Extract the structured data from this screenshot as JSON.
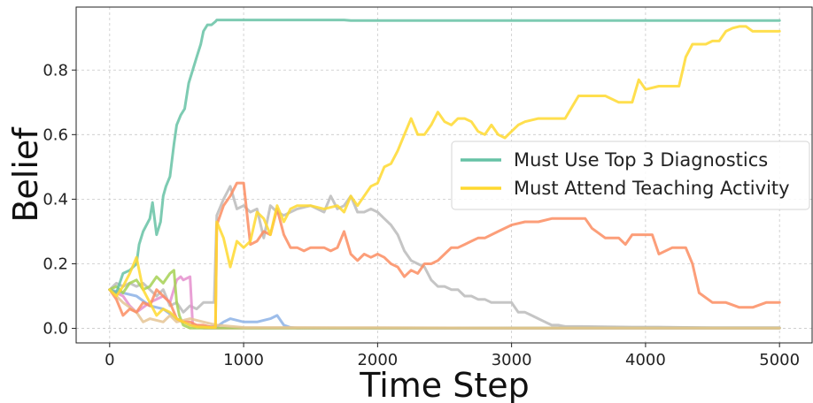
{
  "chart_data": {
    "type": "line",
    "title": "",
    "xlabel": "Time Step",
    "ylabel": "Belief",
    "xlim": [
      -250,
      5250
    ],
    "ylim": [
      -0.045,
      0.995
    ],
    "xticks": [
      0,
      1000,
      2000,
      3000,
      4000,
      5000
    ],
    "xtick_labels": [
      "0",
      "1000",
      "2000",
      "3000",
      "4000",
      "5000"
    ],
    "yticks": [
      0.0,
      0.2,
      0.4,
      0.6,
      0.8
    ],
    "ytick_labels": [
      "0.0",
      "0.2",
      "0.4",
      "0.6",
      "0.8"
    ],
    "grid": true,
    "legend_position": "center-right",
    "series": [
      {
        "color": "#bbbbbb",
        "x": [
          0,
          50,
          100,
          150,
          200,
          250,
          300,
          350,
          400,
          450,
          500,
          550,
          600,
          650,
          700,
          780,
          800,
          850,
          900,
          950,
          1000,
          1050,
          1100,
          1150,
          1200,
          1250,
          1300,
          1400,
          1500,
          1600,
          1650,
          1700,
          1750,
          1800,
          1850,
          1900,
          1950,
          2000,
          2050,
          2100,
          2150,
          2200,
          2250,
          2300,
          2350,
          2400,
          2450,
          2500,
          2550,
          2600,
          2650,
          2700,
          2750,
          2800,
          2850,
          2900,
          2950,
          3000,
          3050,
          3100,
          3150,
          3200,
          3250,
          3300,
          3350,
          3400,
          3500,
          3700,
          3900,
          4100,
          4300,
          4500,
          4700,
          5000
        ],
        "y": [
          0.12,
          0.14,
          0.13,
          0.14,
          0.13,
          0.14,
          0.12,
          0.1,
          0.12,
          0.07,
          0.08,
          0.05,
          0.07,
          0.06,
          0.08,
          0.08,
          0.35,
          0.4,
          0.44,
          0.37,
          0.38,
          0.36,
          0.37,
          0.28,
          0.38,
          0.36,
          0.35,
          0.37,
          0.38,
          0.36,
          0.41,
          0.37,
          0.38,
          0.41,
          0.36,
          0.36,
          0.37,
          0.36,
          0.34,
          0.32,
          0.29,
          0.24,
          0.21,
          0.2,
          0.19,
          0.15,
          0.13,
          0.13,
          0.12,
          0.12,
          0.1,
          0.1,
          0.09,
          0.09,
          0.08,
          0.08,
          0.08,
          0.08,
          0.05,
          0.05,
          0.04,
          0.03,
          0.02,
          0.01,
          0.01,
          0.006,
          0.006,
          0.005,
          0.004,
          0.004,
          0.003,
          0.002,
          0.002,
          0.002
        ]
      },
      {
        "color": "#8cb2e6",
        "x": [
          0,
          100,
          200,
          300,
          400,
          500,
          600,
          700,
          800,
          850,
          900,
          1000,
          1100,
          1200,
          1250,
          1300,
          1350,
          1400,
          2000,
          3000,
          4000,
          5000
        ],
        "y": [
          0.12,
          0.11,
          0.1,
          0.07,
          0.06,
          0.03,
          0.01,
          0.005,
          0.005,
          0.02,
          0.03,
          0.02,
          0.02,
          0.03,
          0.04,
          0.01,
          0.003,
          0.001,
          0.001,
          0.001,
          0.001,
          0.001
        ]
      },
      {
        "color": "#e58fce",
        "x": [
          0,
          100,
          150,
          200,
          300,
          400,
          450,
          500,
          530,
          550,
          600,
          620,
          650,
          700,
          3000,
          5000
        ],
        "y": [
          0.12,
          0.1,
          0.07,
          0.05,
          0.08,
          0.1,
          0.08,
          0.15,
          0.16,
          0.15,
          0.16,
          0.01,
          0.005,
          0.001,
          0.001,
          0.001
        ]
      },
      {
        "color": "#a6d154",
        "x": [
          0,
          50,
          100,
          150,
          200,
          250,
          300,
          350,
          400,
          450,
          480,
          500,
          520,
          550,
          600,
          3000,
          5000
        ],
        "y": [
          0.12,
          0.13,
          0.11,
          0.14,
          0.15,
          0.12,
          0.13,
          0.16,
          0.14,
          0.17,
          0.18,
          0.08,
          0.04,
          0.01,
          0.001,
          0.001,
          0.001
        ]
      },
      {
        "color": "#e5c494",
        "x": [
          0,
          100,
          200,
          250,
          300,
          400,
          450,
          500,
          600,
          700,
          800,
          1000,
          2000,
          3000,
          4000,
          5000
        ],
        "y": [
          0.12,
          0.08,
          0.05,
          0.02,
          0.03,
          0.02,
          0.04,
          0.02,
          0.03,
          0.02,
          0.01,
          0.003,
          0.002,
          0.001,
          0.001,
          0.001
        ]
      },
      {
        "color": "#fc8d62",
        "x": [
          0,
          50,
          100,
          150,
          200,
          250,
          300,
          350,
          400,
          450,
          500,
          550,
          600,
          650,
          700,
          750,
          790,
          800,
          850,
          900,
          950,
          1000,
          1050,
          1100,
          1150,
          1200,
          1250,
          1300,
          1350,
          1400,
          1450,
          1500,
          1550,
          1600,
          1650,
          1700,
          1750,
          1800,
          1850,
          1900,
          1950,
          2000,
          2050,
          2100,
          2150,
          2200,
          2250,
          2300,
          2350,
          2400,
          2450,
          2500,
          2550,
          2600,
          2650,
          2700,
          2750,
          2800,
          2850,
          2900,
          3000,
          3100,
          3200,
          3300,
          3400,
          3500,
          3550,
          3600,
          3700,
          3800,
          3850,
          3900,
          4000,
          4050,
          4100,
          4200,
          4250,
          4300,
          4350,
          4400,
          4500,
          4600,
          4700,
          4800,
          4900,
          5000
        ],
        "y": [
          0.12,
          0.09,
          0.04,
          0.06,
          0.05,
          0.08,
          0.07,
          0.12,
          0.1,
          0.08,
          0.03,
          0.02,
          0.02,
          0.01,
          0.01,
          0.005,
          0.004,
          0.32,
          0.38,
          0.41,
          0.45,
          0.45,
          0.26,
          0.27,
          0.3,
          0.29,
          0.37,
          0.29,
          0.25,
          0.25,
          0.24,
          0.25,
          0.25,
          0.25,
          0.24,
          0.25,
          0.3,
          0.23,
          0.21,
          0.23,
          0.22,
          0.23,
          0.22,
          0.2,
          0.19,
          0.16,
          0.18,
          0.17,
          0.2,
          0.2,
          0.21,
          0.23,
          0.25,
          0.25,
          0.26,
          0.27,
          0.28,
          0.28,
          0.29,
          0.3,
          0.32,
          0.33,
          0.33,
          0.34,
          0.34,
          0.34,
          0.34,
          0.31,
          0.28,
          0.28,
          0.26,
          0.29,
          0.29,
          0.29,
          0.23,
          0.25,
          0.25,
          0.25,
          0.2,
          0.11,
          0.08,
          0.08,
          0.065,
          0.065,
          0.08,
          0.08
        ]
      },
      {
        "color": "#66c2a5",
        "name": "Must Use Top 3 Diagnostics",
        "x": [
          0,
          50,
          100,
          150,
          200,
          220,
          250,
          300,
          320,
          350,
          380,
          400,
          420,
          450,
          480,
          500,
          530,
          560,
          590,
          620,
          650,
          680,
          700,
          730,
          760,
          790,
          800,
          850,
          1000,
          1500,
          1750,
          1800,
          2000,
          3000,
          4000,
          5000
        ],
        "y": [
          0.12,
          0.11,
          0.17,
          0.18,
          0.2,
          0.26,
          0.3,
          0.34,
          0.39,
          0.29,
          0.33,
          0.41,
          0.44,
          0.47,
          0.57,
          0.63,
          0.66,
          0.68,
          0.76,
          0.8,
          0.84,
          0.88,
          0.92,
          0.94,
          0.94,
          0.95,
          0.955,
          0.955,
          0.955,
          0.955,
          0.955,
          0.953,
          0.953,
          0.953,
          0.953,
          0.953
        ]
      },
      {
        "color": "#ffd92f",
        "name": "Must Attend Teaching Activity",
        "x": [
          0,
          50,
          100,
          150,
          200,
          250,
          300,
          350,
          400,
          450,
          500,
          550,
          600,
          650,
          700,
          750,
          790,
          800,
          850,
          900,
          950,
          1000,
          1050,
          1100,
          1150,
          1200,
          1250,
          1300,
          1350,
          1400,
          1500,
          1600,
          1700,
          1750,
          1800,
          1850,
          1900,
          1950,
          2000,
          2050,
          2100,
          2150,
          2200,
          2250,
          2300,
          2350,
          2400,
          2450,
          2500,
          2550,
          2600,
          2650,
          2700,
          2750,
          2800,
          2850,
          2900,
          2950,
          3000,
          3050,
          3100,
          3200,
          3300,
          3400,
          3500,
          3550,
          3600,
          3700,
          3800,
          3850,
          3900,
          3950,
          4000,
          4100,
          4200,
          4250,
          4300,
          4350,
          4400,
          4450,
          4500,
          4550,
          4600,
          4650,
          4700,
          4750,
          4800,
          4900,
          5000
        ],
        "y": [
          0.12,
          0.1,
          0.13,
          0.17,
          0.22,
          0.12,
          0.08,
          0.04,
          0.06,
          0.05,
          0.03,
          0.02,
          0.01,
          0.005,
          0.004,
          0.003,
          0.003,
          0.33,
          0.28,
          0.19,
          0.27,
          0.25,
          0.27,
          0.36,
          0.34,
          0.29,
          0.38,
          0.33,
          0.37,
          0.38,
          0.38,
          0.37,
          0.38,
          0.36,
          0.41,
          0.38,
          0.41,
          0.44,
          0.45,
          0.5,
          0.51,
          0.55,
          0.6,
          0.65,
          0.6,
          0.6,
          0.63,
          0.67,
          0.64,
          0.63,
          0.65,
          0.65,
          0.64,
          0.61,
          0.6,
          0.63,
          0.6,
          0.59,
          0.61,
          0.63,
          0.64,
          0.65,
          0.65,
          0.65,
          0.72,
          0.72,
          0.72,
          0.72,
          0.7,
          0.7,
          0.7,
          0.77,
          0.74,
          0.75,
          0.75,
          0.75,
          0.84,
          0.88,
          0.88,
          0.88,
          0.89,
          0.89,
          0.92,
          0.93,
          0.935,
          0.935,
          0.92,
          0.92,
          0.92
        ]
      }
    ]
  }
}
